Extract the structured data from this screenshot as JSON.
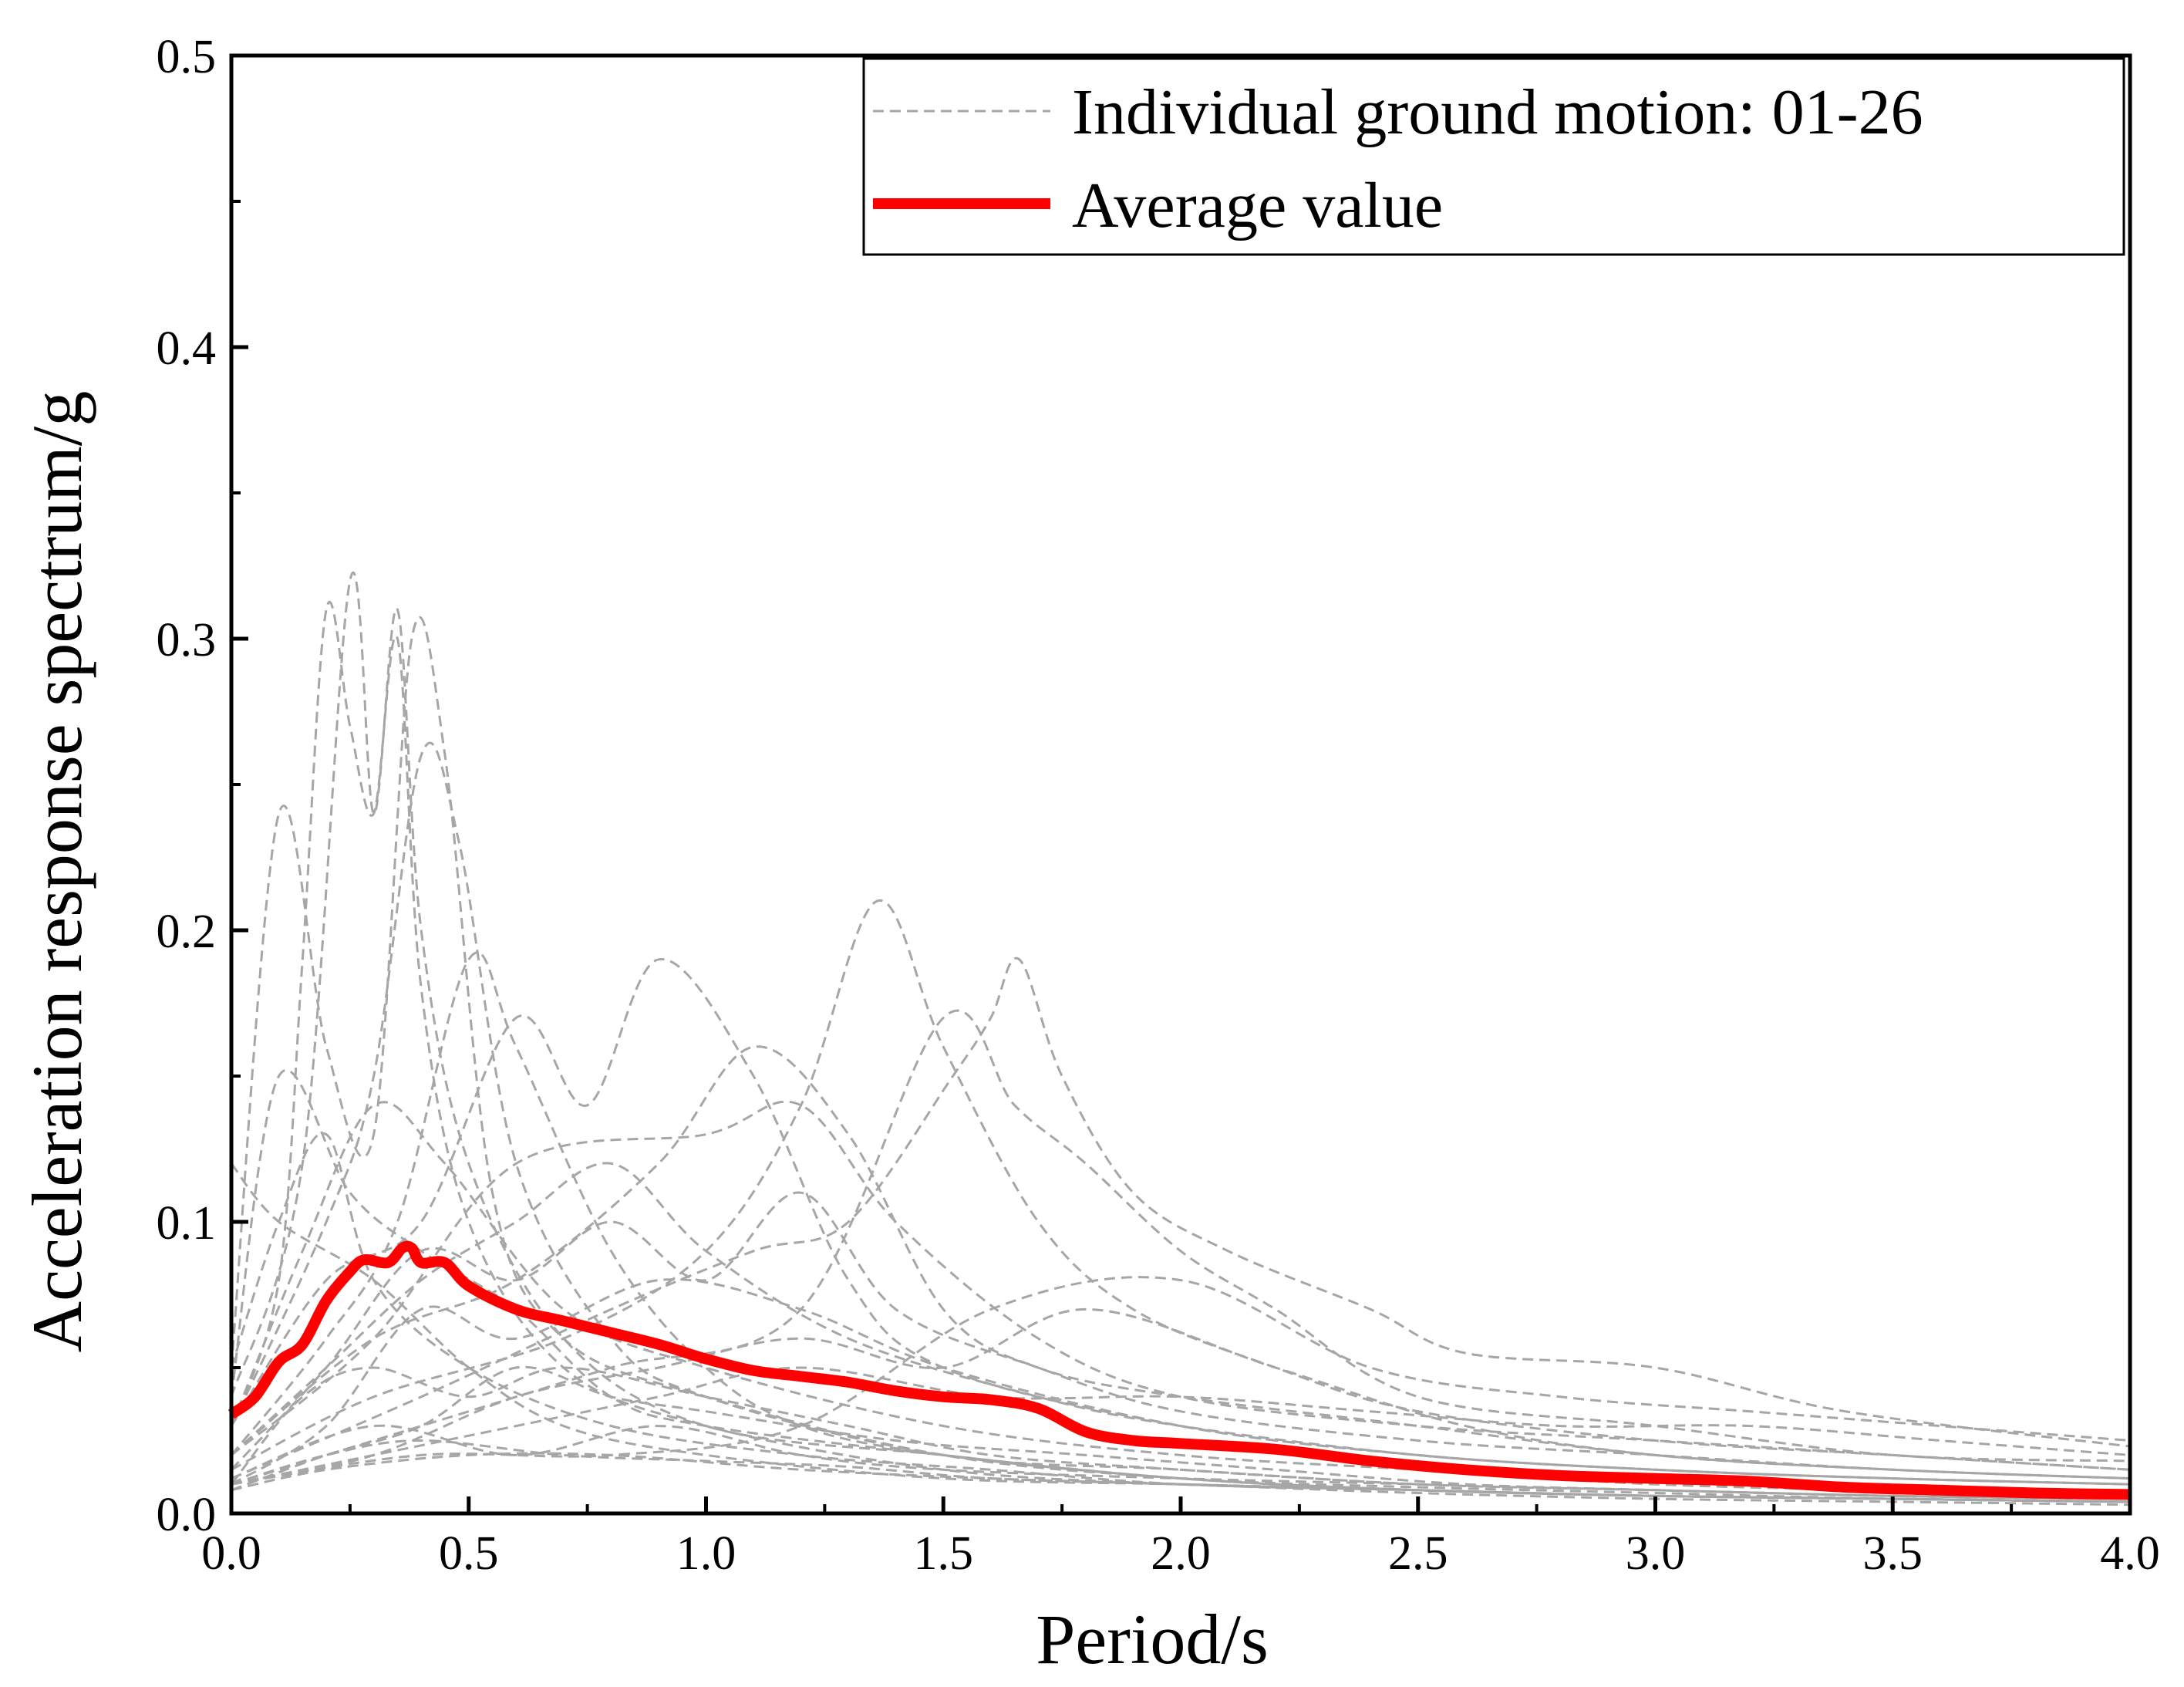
{
  "chart_data": {
    "type": "line",
    "title": "",
    "xlabel": "Period/s",
    "ylabel": "Acceleration response spectrum/g",
    "xlim": [
      0,
      4.0
    ],
    "ylim": [
      0,
      0.5
    ],
    "xticks": [
      "0.0",
      "0.5",
      "1.0",
      "1.5",
      "2.0",
      "2.5",
      "3.0",
      "3.5",
      "4.0"
    ],
    "yticks": [
      "0.0",
      "0.1",
      "0.2",
      "0.3",
      "0.4",
      "0.5"
    ],
    "grid": false,
    "legend_position": "top-right",
    "legend": {
      "individual_label": "Individual ground motion: 01-26",
      "average_label": "Average value"
    },
    "colors": {
      "individual": "#a6a6a6",
      "average": "#ff0000"
    },
    "series": [
      {
        "name": "Individual ground motion: 01",
        "x": [
          0,
          0.1,
          0.15,
          0.2,
          0.25,
          0.3,
          0.35,
          0.4,
          0.5,
          0.7,
          1.0,
          1.5,
          2.0,
          2.5,
          3.0,
          3.5,
          4.0
        ],
        "y": [
          0.03,
          0.08,
          0.19,
          0.31,
          0.27,
          0.24,
          0.3,
          0.18,
          0.1,
          0.05,
          0.03,
          0.015,
          0.01,
          0.008,
          0.006,
          0.005,
          0.004
        ]
      },
      {
        "name": "Individual ground motion: 02",
        "x": [
          0,
          0.15,
          0.25,
          0.3,
          0.35,
          0.4,
          0.5,
          0.7,
          1.0,
          1.5,
          2.0,
          2.5,
          3.0,
          3.5,
          4.0
        ],
        "y": [
          0.04,
          0.12,
          0.32,
          0.24,
          0.31,
          0.2,
          0.12,
          0.06,
          0.03,
          0.02,
          0.012,
          0.009,
          0.007,
          0.005,
          0.004
        ]
      },
      {
        "name": "Individual ground motion: 03",
        "x": [
          0,
          0.1,
          0.2,
          0.3,
          0.38,
          0.45,
          0.55,
          0.7,
          1.0,
          1.5,
          2.0,
          2.5,
          3.0,
          3.5,
          4.0
        ],
        "y": [
          0.05,
          0.24,
          0.16,
          0.13,
          0.3,
          0.26,
          0.11,
          0.06,
          0.04,
          0.02,
          0.012,
          0.008,
          0.006,
          0.005,
          0.004
        ]
      },
      {
        "name": "Individual ground motion: 04",
        "x": [
          0,
          0.2,
          0.3,
          0.4,
          0.48,
          0.6,
          0.8,
          1.0,
          1.5,
          2.0,
          2.5,
          3.0,
          3.5,
          4.0
        ],
        "y": [
          0.03,
          0.1,
          0.15,
          0.26,
          0.23,
          0.12,
          0.06,
          0.04,
          0.02,
          0.015,
          0.01,
          0.008,
          0.006,
          0.005
        ]
      },
      {
        "name": "Individual ground motion: 05",
        "x": [
          0,
          0.2,
          0.35,
          0.5,
          0.6,
          0.8,
          1.0,
          1.2,
          1.5,
          2.0,
          2.5,
          3.0,
          3.5,
          4.0
        ],
        "y": [
          0.02,
          0.06,
          0.1,
          0.19,
          0.16,
          0.09,
          0.05,
          0.03,
          0.02,
          0.012,
          0.008,
          0.006,
          0.005,
          0.004
        ]
      },
      {
        "name": "Individual ground motion: 06",
        "x": [
          0,
          0.2,
          0.4,
          0.6,
          0.75,
          0.9,
          1.1,
          1.3,
          1.5,
          2.0,
          2.5,
          3.0,
          3.5,
          4.0
        ],
        "y": [
          0.03,
          0.08,
          0.1,
          0.17,
          0.14,
          0.19,
          0.15,
          0.08,
          0.05,
          0.03,
          0.02,
          0.015,
          0.012,
          0.01
        ]
      },
      {
        "name": "Individual ground motion: 07",
        "x": [
          0,
          0.3,
          0.6,
          0.9,
          1.1,
          1.3,
          1.5,
          1.7,
          2.0,
          2.5,
          3.0,
          3.5,
          4.0
        ],
        "y": [
          0.02,
          0.06,
          0.08,
          0.12,
          0.16,
          0.13,
          0.07,
          0.05,
          0.04,
          0.03,
          0.02,
          0.015,
          0.012
        ]
      },
      {
        "name": "Individual ground motion: 08",
        "x": [
          0,
          0.3,
          0.7,
          1.0,
          1.2,
          1.36,
          1.5,
          1.7,
          1.9,
          2.2,
          2.5,
          3.0,
          3.5,
          4.0
        ],
        "y": [
          0.015,
          0.04,
          0.06,
          0.09,
          0.14,
          0.21,
          0.16,
          0.1,
          0.07,
          0.05,
          0.035,
          0.025,
          0.02,
          0.015
        ]
      },
      {
        "name": "Individual ground motion: 09",
        "x": [
          0,
          0.4,
          0.8,
          1.1,
          1.3,
          1.52,
          1.6,
          1.66,
          1.75,
          1.9,
          2.1,
          2.4,
          2.6,
          3.0,
          3.4,
          4.0
        ],
        "y": [
          0.012,
          0.04,
          0.07,
          0.09,
          0.1,
          0.15,
          0.17,
          0.19,
          0.15,
          0.11,
          0.09,
          0.07,
          0.055,
          0.05,
          0.035,
          0.023
        ]
      },
      {
        "name": "Individual ground motion: 10",
        "x": [
          0,
          0.4,
          0.8,
          1.2,
          1.5,
          1.65,
          1.8,
          2.0,
          2.2,
          2.5,
          3.0,
          3.5,
          4.0
        ],
        "y": [
          0.01,
          0.03,
          0.05,
          0.07,
          0.17,
          0.14,
          0.12,
          0.09,
          0.07,
          0.04,
          0.03,
          0.02,
          0.018
        ]
      },
      {
        "name": "Individual ground motion: 11",
        "x": [
          0,
          0.3,
          0.6,
          1.0,
          1.2,
          1.4,
          1.7,
          2.0,
          2.5,
          3.0,
          3.5,
          4.0
        ],
        "y": [
          0.02,
          0.06,
          0.12,
          0.13,
          0.14,
          0.1,
          0.06,
          0.04,
          0.03,
          0.025,
          0.02,
          0.015
        ]
      },
      {
        "name": "Individual ground motion: 12",
        "x": [
          0,
          0.2,
          0.4,
          0.6,
          0.8,
          1.0,
          1.2,
          1.4,
          1.7,
          2.0,
          2.5,
          3.0,
          3.5,
          4.0
        ],
        "y": [
          0.015,
          0.05,
          0.09,
          0.08,
          0.1,
          0.08,
          0.11,
          0.07,
          0.05,
          0.035,
          0.025,
          0.02,
          0.015,
          0.012
        ]
      },
      {
        "name": "Individual ground motion: 13",
        "x": [
          0,
          0.2,
          0.4,
          0.6,
          0.9,
          1.2,
          1.5,
          2.0,
          2.5,
          3.0,
          3.5,
          4.0
        ],
        "y": [
          0.01,
          0.03,
          0.07,
          0.06,
          0.08,
          0.07,
          0.05,
          0.03,
          0.02,
          0.015,
          0.012,
          0.01
        ]
      },
      {
        "name": "Individual ground motion: 14",
        "x": [
          0,
          0.15,
          0.3,
          0.5,
          0.7,
          1.0,
          1.3,
          1.6,
          2.0,
          2.5,
          3.0,
          3.5,
          4.0
        ],
        "y": [
          0.01,
          0.04,
          0.05,
          0.04,
          0.05,
          0.04,
          0.03,
          0.02,
          0.015,
          0.01,
          0.008,
          0.006,
          0.005
        ]
      },
      {
        "name": "Individual ground motion: 15",
        "x": [
          0,
          0.2,
          0.4,
          0.6,
          0.8,
          1.0,
          1.4,
          1.8,
          2.2,
          2.6,
          3.0,
          3.5,
          4.0
        ],
        "y": [
          0.008,
          0.02,
          0.03,
          0.05,
          0.04,
          0.035,
          0.025,
          0.02,
          0.015,
          0.01,
          0.008,
          0.006,
          0.005
        ]
      },
      {
        "name": "Individual ground motion: 16",
        "x": [
          0,
          0.3,
          0.6,
          0.9,
          1.2,
          1.5,
          2.0,
          2.5,
          3.0,
          3.5,
          4.0
        ],
        "y": [
          0.012,
          0.03,
          0.02,
          0.03,
          0.02,
          0.015,
          0.012,
          0.01,
          0.008,
          0.006,
          0.005
        ]
      },
      {
        "name": "Individual ground motion: 17",
        "x": [
          0,
          0.2,
          0.4,
          0.7,
          1.0,
          1.3,
          1.6,
          2.0,
          2.5,
          3.0,
          3.5,
          4.0
        ],
        "y": [
          0.01,
          0.02,
          0.025,
          0.02,
          0.018,
          0.016,
          0.012,
          0.01,
          0.007,
          0.005,
          0.004,
          0.003
        ]
      },
      {
        "name": "Individual ground motion: 18",
        "x": [
          0,
          0.1,
          0.2,
          0.3,
          0.5,
          0.8,
          1.2,
          1.6,
          2.0,
          2.5,
          3.0,
          3.5,
          4.0
        ],
        "y": [
          0.05,
          0.1,
          0.13,
          0.08,
          0.05,
          0.03,
          0.02,
          0.015,
          0.01,
          0.008,
          0.006,
          0.005,
          0.004
        ]
      },
      {
        "name": "Individual ground motion: 19",
        "x": [
          0,
          0.1,
          0.25,
          0.4,
          0.6,
          0.8,
          1.0,
          1.5,
          2.0,
          2.5,
          3.0,
          3.5,
          4.0
        ],
        "y": [
          0.04,
          0.15,
          0.11,
          0.09,
          0.07,
          0.04,
          0.03,
          0.02,
          0.012,
          0.008,
          0.006,
          0.005,
          0.004
        ]
      },
      {
        "name": "Individual ground motion: 20",
        "x": [
          0,
          0.15,
          0.3,
          0.45,
          0.7,
          1.0,
          1.5,
          2.0,
          2.5,
          3.0,
          3.5,
          4.0
        ],
        "y": [
          0.03,
          0.09,
          0.14,
          0.12,
          0.07,
          0.05,
          0.03,
          0.02,
          0.015,
          0.01,
          0.008,
          0.007
        ]
      },
      {
        "name": "Individual ground motion: 21",
        "x": [
          0,
          0.2,
          0.4,
          0.6,
          0.8,
          1.0,
          1.3,
          1.7,
          2.0,
          2.5,
          3.0,
          3.5,
          4.0
        ],
        "y": [
          0.02,
          0.05,
          0.08,
          0.1,
          0.12,
          0.09,
          0.06,
          0.04,
          0.03,
          0.02,
          0.015,
          0.012,
          0.01
        ]
      },
      {
        "name": "Individual ground motion: 22",
        "x": [
          0,
          0.3,
          0.6,
          0.9,
          1.2,
          1.6,
          2.0,
          2.4,
          2.8,
          3.2,
          3.6,
          4.0
        ],
        "y": [
          0.01,
          0.02,
          0.03,
          0.04,
          0.05,
          0.04,
          0.04,
          0.035,
          0.03,
          0.03,
          0.025,
          0.02
        ]
      },
      {
        "name": "Individual ground motion: 23",
        "x": [
          0,
          0.4,
          0.8,
          1.2,
          1.6,
          2.0,
          2.4,
          2.8,
          3.2,
          3.6,
          4.0
        ],
        "y": [
          0.01,
          0.02,
          0.02,
          0.03,
          0.07,
          0.08,
          0.05,
          0.04,
          0.035,
          0.03,
          0.025
        ]
      },
      {
        "name": "Individual ground motion: 24",
        "x": [
          0,
          0.2,
          0.5,
          0.8,
          1.2,
          1.6,
          2.0,
          2.5,
          3.0,
          3.5,
          4.0
        ],
        "y": [
          0.008,
          0.015,
          0.02,
          0.02,
          0.015,
          0.012,
          0.01,
          0.008,
          0.006,
          0.005,
          0.004
        ]
      },
      {
        "name": "Individual ground motion: 25",
        "x": [
          0,
          0.1,
          0.3,
          0.5,
          0.7,
          1.0,
          1.5,
          2.0,
          2.5,
          3.0,
          3.5,
          4.0
        ],
        "y": [
          0.12,
          0.1,
          0.08,
          0.05,
          0.03,
          0.02,
          0.012,
          0.01,
          0.008,
          0.006,
          0.005,
          0.004
        ]
      },
      {
        "name": "Individual ground motion: 26",
        "x": [
          0,
          0.3,
          0.6,
          0.9,
          1.2,
          1.5,
          1.8,
          2.2,
          2.6,
          3.0,
          3.5,
          4.0
        ],
        "y": [
          0.01,
          0.02,
          0.04,
          0.05,
          0.06,
          0.05,
          0.07,
          0.05,
          0.03,
          0.02,
          0.015,
          0.012
        ]
      },
      {
        "name": "Average value",
        "x": [
          0,
          0.05,
          0.1,
          0.15,
          0.2,
          0.25,
          0.28,
          0.33,
          0.36,
          0.38,
          0.4,
          0.45,
          0.5,
          0.6,
          0.7,
          0.8,
          0.9,
          1.0,
          1.1,
          1.2,
          1.3,
          1.4,
          1.5,
          1.6,
          1.7,
          1.8,
          1.9,
          2.0,
          2.2,
          2.4,
          2.6,
          2.8,
          3.0,
          3.2,
          3.4,
          3.6,
          3.8,
          4.0
        ],
        "y": [
          0.034,
          0.04,
          0.052,
          0.058,
          0.073,
          0.083,
          0.087,
          0.086,
          0.091,
          0.091,
          0.086,
          0.086,
          0.078,
          0.07,
          0.066,
          0.062,
          0.058,
          0.053,
          0.049,
          0.047,
          0.045,
          0.042,
          0.04,
          0.039,
          0.036,
          0.028,
          0.025,
          0.024,
          0.022,
          0.018,
          0.015,
          0.013,
          0.012,
          0.011,
          0.009,
          0.008,
          0.007,
          0.0065
        ]
      }
    ]
  }
}
